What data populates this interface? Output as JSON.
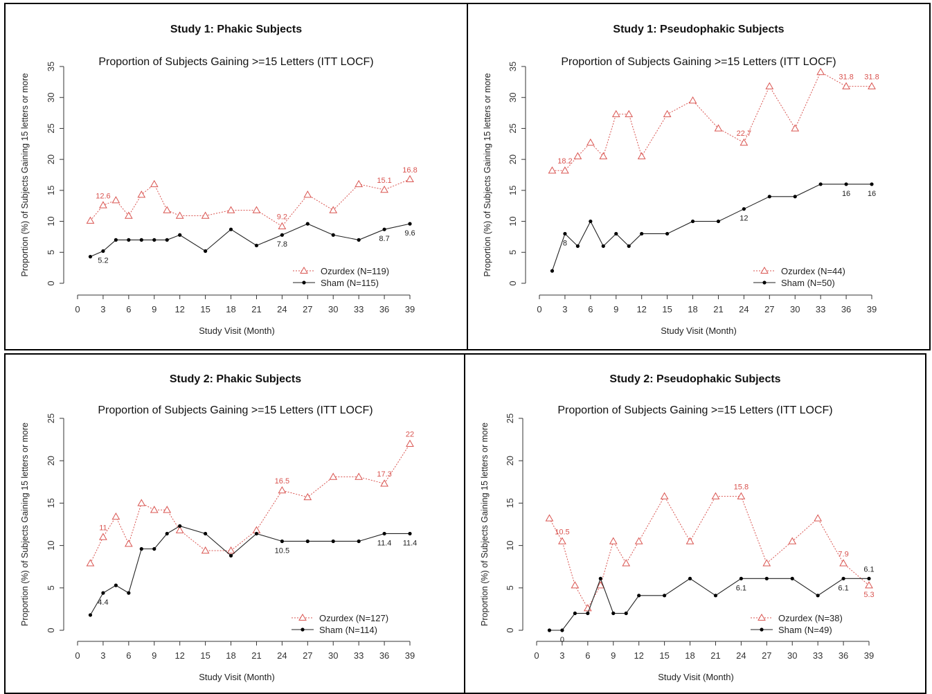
{
  "top_fragment": "",
  "chart_data": [
    {
      "type": "line",
      "title": "Study 1:  Phakic Subjects",
      "subtitle": "Proportion of Subjects Gaining >=15 Letters (ITT LOCF)",
      "xlabel": "Study Visit (Month)",
      "ylabel": "Proportion (%) of Subjects Gaining 15 letters or more",
      "xlim": [
        0,
        39
      ],
      "ylim": [
        0,
        35
      ],
      "xticks": [
        0,
        3,
        6,
        9,
        12,
        15,
        18,
        21,
        24,
        27,
        30,
        33,
        36,
        39
      ],
      "yticks": [
        0,
        5,
        10,
        15,
        20,
        25,
        30,
        35
      ],
      "legend_position": "bottom-right",
      "series": [
        {
          "name": "Ozurdex (N=119)",
          "color": "#d9534f",
          "marker": "triangle",
          "dash": true,
          "x": [
            1.5,
            3,
            4.5,
            6,
            7.5,
            9,
            10.5,
            12,
            15,
            18,
            21,
            24,
            27,
            30,
            33,
            36,
            39
          ],
          "values": [
            10.1,
            12.6,
            13.4,
            10.9,
            14.3,
            16.0,
            11.8,
            10.9,
            10.9,
            11.8,
            11.8,
            9.2,
            14.3,
            11.8,
            16.0,
            15.1,
            16.8
          ],
          "labels": [
            {
              "i": 1,
              "text": "12.6"
            },
            {
              "i": 11,
              "text": "9.2"
            },
            {
              "i": 15,
              "text": "15.1"
            },
            {
              "i": 16,
              "text": "16.8"
            }
          ]
        },
        {
          "name": "Sham (N=115)",
          "color": "#222222",
          "marker": "dot",
          "dash": false,
          "x": [
            1.5,
            3,
            4.5,
            6,
            7.5,
            9,
            10.5,
            12,
            15,
            18,
            21,
            24,
            27,
            30,
            33,
            36,
            39
          ],
          "values": [
            4.3,
            5.2,
            7.0,
            7.0,
            7.0,
            7.0,
            7.0,
            7.8,
            5.2,
            8.7,
            6.1,
            7.8,
            9.6,
            7.8,
            7.0,
            8.7,
            9.6
          ],
          "labels": [
            {
              "i": 1,
              "text": "5.2"
            },
            {
              "i": 11,
              "text": "7.8"
            },
            {
              "i": 15,
              "text": "8.7"
            },
            {
              "i": 16,
              "text": "9.6"
            }
          ]
        }
      ]
    },
    {
      "type": "line",
      "title": "Study 1:  Pseudophakic Subjects",
      "subtitle": "Proportion of Subjects Gaining >=15 Letters (ITT LOCF)",
      "xlabel": "Study Visit (Month)",
      "ylabel": "Proportion (%) of Subjects Gaining 15 letters or more",
      "xlim": [
        0,
        39
      ],
      "ylim": [
        0,
        35
      ],
      "xticks": [
        0,
        3,
        6,
        9,
        12,
        15,
        18,
        21,
        24,
        27,
        30,
        33,
        36,
        39
      ],
      "yticks": [
        0,
        5,
        10,
        15,
        20,
        25,
        30,
        35
      ],
      "legend_position": "bottom-right",
      "series": [
        {
          "name": "Ozurdex (N=44)",
          "color": "#d9534f",
          "marker": "triangle",
          "dash": true,
          "x": [
            1.5,
            3,
            4.5,
            6,
            7.5,
            9,
            10.5,
            12,
            15,
            18,
            21,
            24,
            27,
            30,
            33,
            36,
            39
          ],
          "values": [
            18.2,
            18.2,
            20.5,
            22.7,
            20.5,
            27.3,
            27.3,
            20.5,
            27.3,
            29.5,
            25.0,
            22.7,
            31.8,
            25.0,
            34.1,
            31.8,
            31.8
          ],
          "labels": [
            {
              "i": 1,
              "text": "18.2"
            },
            {
              "i": 11,
              "text": "22.7"
            },
            {
              "i": 15,
              "text": "31.8"
            },
            {
              "i": 16,
              "text": "31.8"
            }
          ]
        },
        {
          "name": "Sham (N=50)",
          "color": "#222222",
          "marker": "dot",
          "dash": false,
          "x": [
            1.5,
            3,
            4.5,
            6,
            7.5,
            9,
            10.5,
            12,
            15,
            18,
            21,
            24,
            27,
            30,
            33,
            36,
            39
          ],
          "values": [
            2,
            8,
            6,
            10,
            6,
            8,
            6,
            8,
            8,
            10,
            10,
            12,
            14,
            14,
            16,
            16,
            16
          ],
          "labels": [
            {
              "i": 1,
              "text": "8"
            },
            {
              "i": 11,
              "text": "12"
            },
            {
              "i": 15,
              "text": "16"
            },
            {
              "i": 16,
              "text": "16"
            }
          ]
        }
      ]
    },
    {
      "type": "line",
      "title": "Study 2:  Phakic Subjects",
      "subtitle": "Proportion of Subjects Gaining >=15 Letters (ITT LOCF)",
      "xlabel": "Study Visit (Month)",
      "ylabel": "Proportion (%) of Subjects Gaining 15 letters or more",
      "xlim": [
        0,
        39
      ],
      "ylim": [
        0,
        25
      ],
      "xticks": [
        0,
        3,
        6,
        9,
        12,
        15,
        18,
        21,
        24,
        27,
        30,
        33,
        36,
        39
      ],
      "yticks": [
        0,
        5,
        10,
        15,
        20,
        25
      ],
      "legend_position": "bottom-right",
      "series": [
        {
          "name": "Ozurdex (N=127)",
          "color": "#d9534f",
          "marker": "triangle",
          "dash": true,
          "x": [
            1.5,
            3,
            4.5,
            6,
            7.5,
            9,
            10.5,
            12,
            15,
            18,
            21,
            24,
            27,
            30,
            33,
            36,
            39
          ],
          "values": [
            7.9,
            11.0,
            13.4,
            10.2,
            15.0,
            14.2,
            14.2,
            11.8,
            9.4,
            9.4,
            11.8,
            16.5,
            15.7,
            18.1,
            18.1,
            17.3,
            22.0
          ],
          "labels": [
            {
              "i": 1,
              "text": "11"
            },
            {
              "i": 11,
              "text": "16.5"
            },
            {
              "i": 15,
              "text": "17.3"
            },
            {
              "i": 16,
              "text": "22"
            }
          ]
        },
        {
          "name": "Sham (N=114)",
          "color": "#222222",
          "marker": "dot",
          "dash": false,
          "x": [
            1.5,
            3,
            4.5,
            6,
            7.5,
            9,
            10.5,
            12,
            15,
            18,
            21,
            24,
            27,
            30,
            33,
            36,
            39
          ],
          "values": [
            1.8,
            4.4,
            5.3,
            4.4,
            9.6,
            9.6,
            11.4,
            12.3,
            11.4,
            8.8,
            11.4,
            10.5,
            10.5,
            10.5,
            10.5,
            11.4,
            11.4
          ],
          "labels": [
            {
              "i": 1,
              "text": "4.4"
            },
            {
              "i": 11,
              "text": "10.5"
            },
            {
              "i": 15,
              "text": "11.4"
            },
            {
              "i": 16,
              "text": "11.4"
            }
          ]
        }
      ]
    },
    {
      "type": "line",
      "title": "Study 2:  Pseudophakic Subjects",
      "subtitle": "Proportion of Subjects Gaining >=15 Letters (ITT LOCF)",
      "xlabel": "Study Visit (Month)",
      "ylabel": "Proportion (%) of Subjects Gaining 15 letters or more",
      "xlim": [
        0,
        39
      ],
      "ylim": [
        0,
        25
      ],
      "xticks": [
        0,
        3,
        6,
        9,
        12,
        15,
        18,
        21,
        24,
        27,
        30,
        33,
        36,
        39
      ],
      "yticks": [
        0,
        5,
        10,
        15,
        20,
        25
      ],
      "legend_position": "bottom-right",
      "series": [
        {
          "name": "Ozurdex (N=38)",
          "color": "#d9534f",
          "marker": "triangle",
          "dash": true,
          "x": [
            1.5,
            3,
            4.5,
            6,
            7.5,
            9,
            10.5,
            12,
            15,
            18,
            21,
            24,
            27,
            30,
            33,
            36,
            39
          ],
          "values": [
            13.2,
            10.5,
            5.3,
            2.6,
            5.3,
            10.5,
            7.9,
            10.5,
            15.8,
            10.5,
            15.8,
            15.8,
            7.9,
            10.5,
            13.2,
            7.9,
            5.3
          ],
          "labels": [
            {
              "i": 1,
              "text": "10.5"
            },
            {
              "i": 11,
              "text": "15.8"
            },
            {
              "i": 15,
              "text": "7.9"
            },
            {
              "i": 16,
              "text": "5.3"
            }
          ]
        },
        {
          "name": "Sham (N=49)",
          "color": "#222222",
          "marker": "dot",
          "dash": false,
          "x": [
            1.5,
            3,
            4.5,
            6,
            7.5,
            9,
            10.5,
            12,
            15,
            18,
            21,
            24,
            27,
            30,
            33,
            36,
            39
          ],
          "values": [
            0,
            0,
            2.0,
            2.0,
            6.1,
            2.0,
            2.0,
            4.1,
            4.1,
            6.1,
            4.1,
            6.1,
            6.1,
            6.1,
            4.1,
            6.1,
            6.1
          ],
          "labels": [
            {
              "i": 1,
              "text": "0"
            },
            {
              "i": 11,
              "text": "6.1"
            },
            {
              "i": 15,
              "text": "6.1"
            },
            {
              "i": 16,
              "text": "6.1"
            }
          ]
        }
      ]
    }
  ]
}
